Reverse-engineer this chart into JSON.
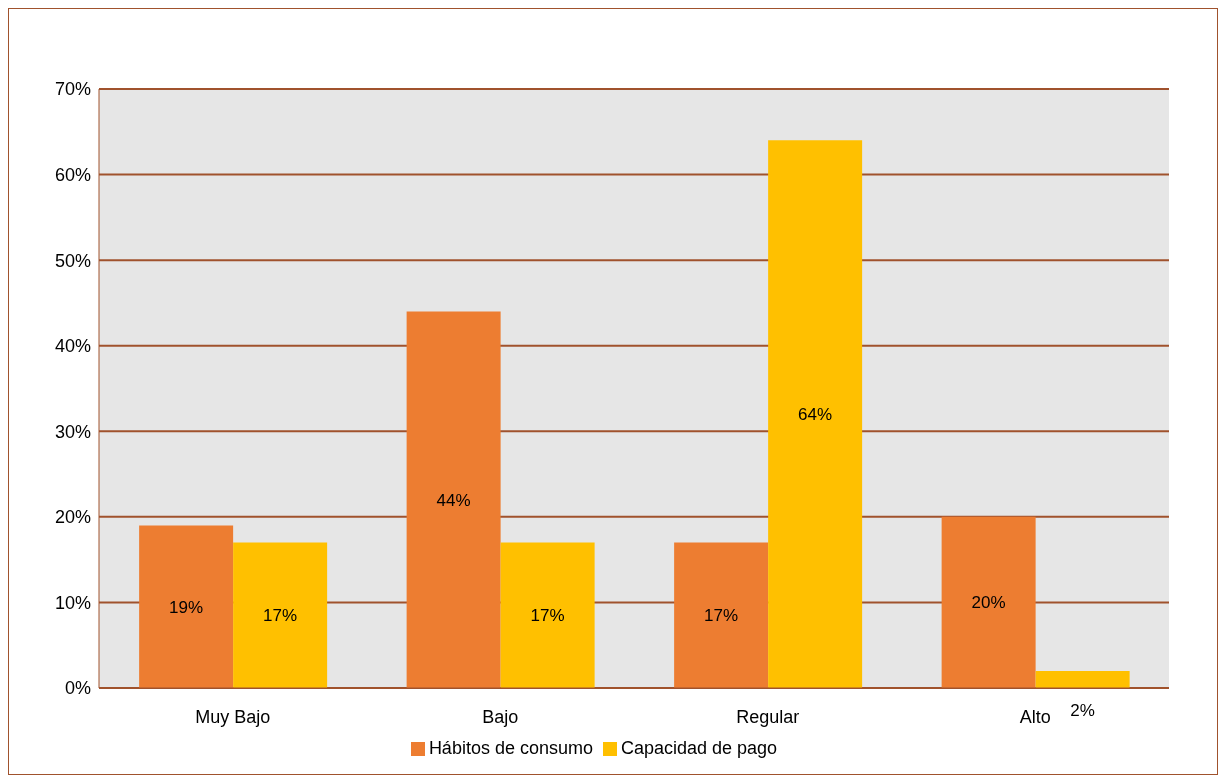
{
  "chart_data": {
    "type": "bar",
    "categories": [
      "Muy Bajo",
      "Bajo",
      "Regular",
      "Alto"
    ],
    "series": [
      {
        "name": "Hábitos de consumo",
        "color": "#ed7d31",
        "values": [
          19,
          44,
          17,
          20
        ],
        "value_labels": [
          "19%",
          "44%",
          "17%",
          "20%"
        ]
      },
      {
        "name": "Capacidad de pago",
        "color": "#ffc000",
        "values": [
          17,
          17,
          64,
          2
        ],
        "value_labels": [
          "17%",
          "17%",
          "64%",
          "2%"
        ]
      }
    ],
    "ylim": [
      0,
      70
    ],
    "yticks": [
      {
        "value": 0,
        "label": "0%"
      },
      {
        "value": 10,
        "label": "10%"
      },
      {
        "value": 20,
        "label": "20%"
      },
      {
        "value": 30,
        "label": "30%"
      },
      {
        "value": 40,
        "label": "40%"
      },
      {
        "value": 50,
        "label": "50%"
      },
      {
        "value": 60,
        "label": "60%"
      },
      {
        "value": 70,
        "label": "70%"
      }
    ],
    "grid": "y",
    "legend": "bottom"
  }
}
